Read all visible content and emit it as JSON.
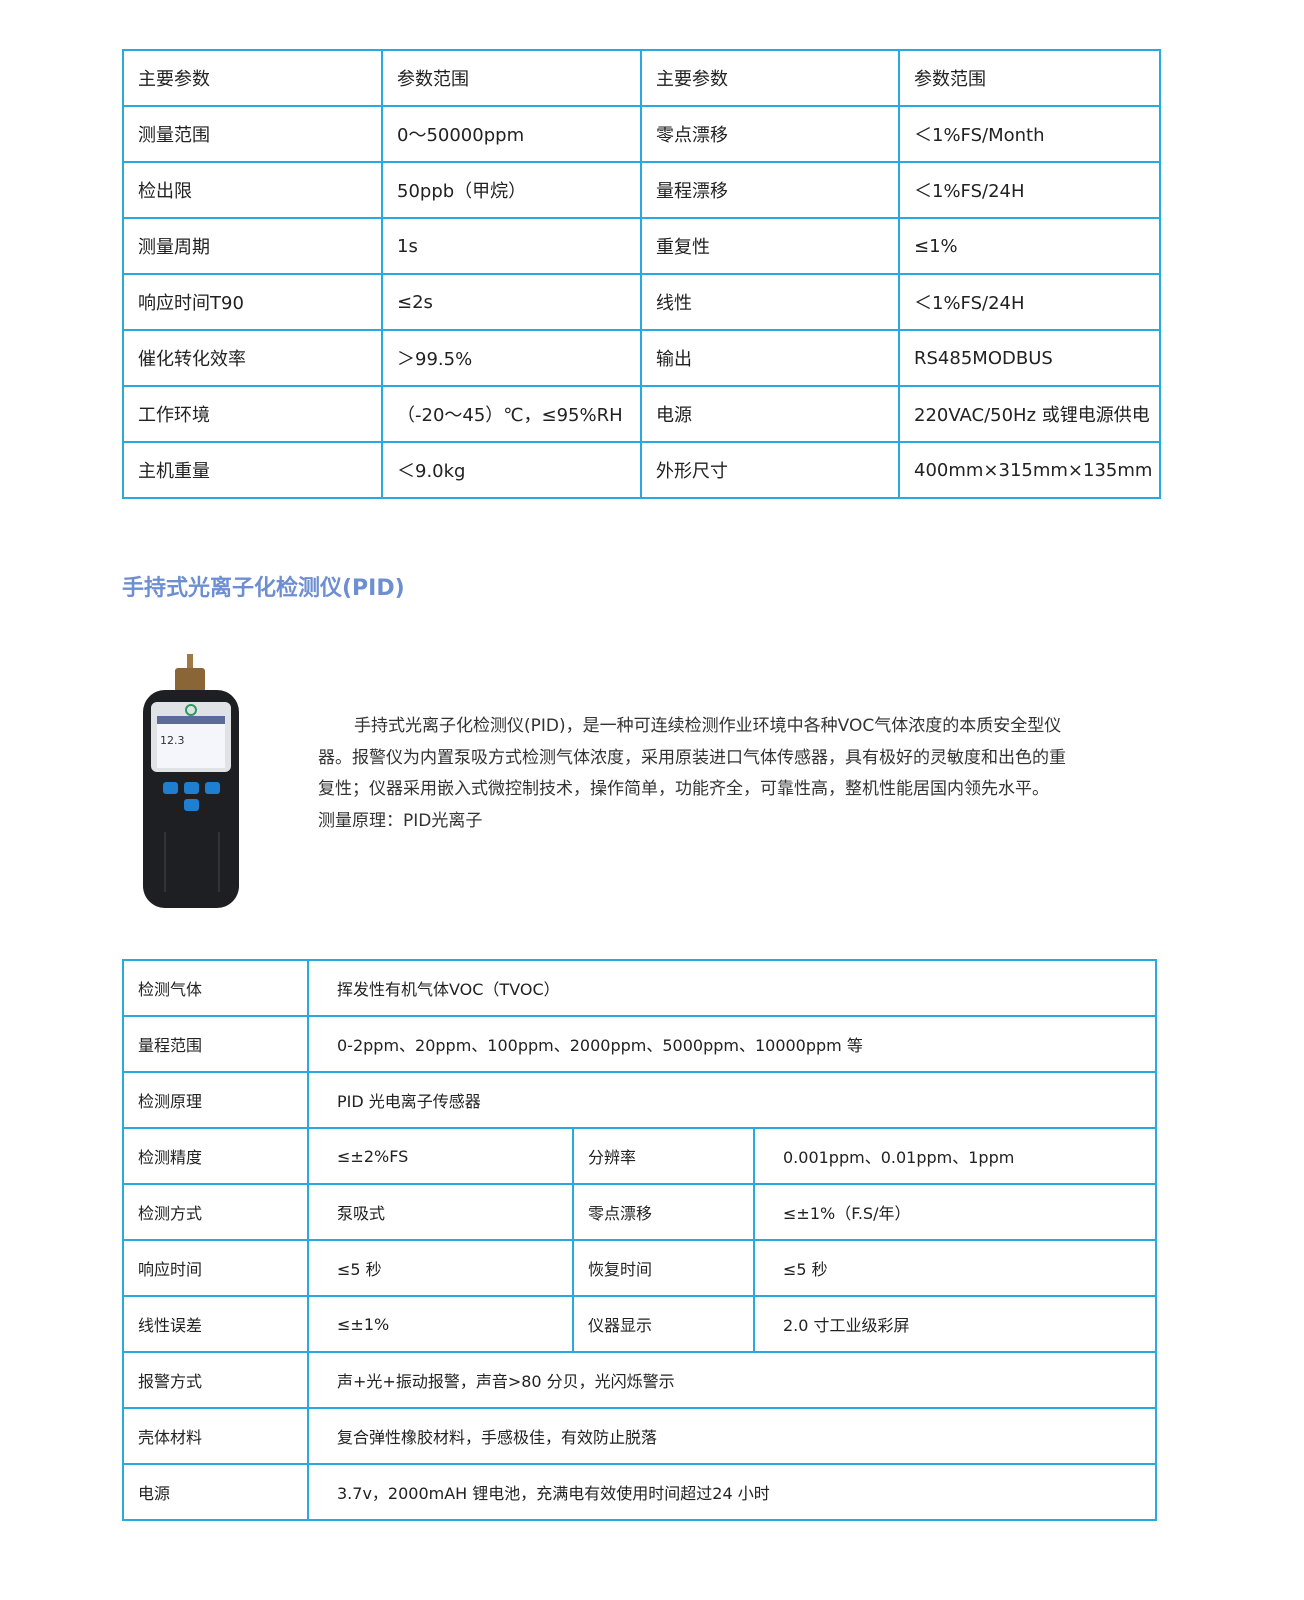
{
  "spec_table_1": {
    "rows": [
      [
        "主要参数",
        "参数范围",
        "主要参数",
        "参数范围"
      ],
      [
        "测量范围",
        "0～50000ppm",
        "零点漂移",
        "＜1%FS/Month"
      ],
      [
        "检出限",
        "50ppb（甲烷）",
        "量程漂移",
        "＜1%FS/24H"
      ],
      [
        "测量周期",
        "1s",
        "重复性",
        "≤1%"
      ],
      [
        "响应时间T90",
        "≤2s",
        "线性",
        "＜1%FS/24H"
      ],
      [
        "催化转化效率",
        "＞99.5%",
        "输出",
        "RS485MODBUS"
      ],
      [
        "工作环境",
        "（-20～45）℃，≤95%RH",
        "电源",
        "220VAC/50Hz 或锂电源供电"
      ],
      [
        "主机重量",
        "＜9.0kg",
        "外形尺寸",
        "400mm×315mm×135mm"
      ]
    ]
  },
  "section": {
    "title": "手持式光离子化检测仪(PID)",
    "description": "手持式光离子化检测仪(PID)，是一种可连续检测作业环境中各种VOC气体浓度的本质安全型仪器。报警仪为内置泵吸方式检测气体浓度，采用原装进口气体传感器，具有极好的灵敏度和出色的重复性；仪器采用嵌入式微控制技术，操作简单，功能齐全，可靠性高，整机性能居国内领先水平。",
    "principle": "测量原理：PID光离子",
    "device_screen_value": "12.3"
  },
  "spec_table_2": {
    "rows": [
      [
        "检测气体",
        "挥发性有机气体VOC（TVOC）"
      ],
      [
        "量程范围",
        "0-2ppm、20ppm、100ppm、2000ppm、5000ppm、10000ppm 等"
      ],
      [
        "检测原理",
        "PID 光电离子传感器"
      ],
      [
        "检测精度",
        "≤±2%FS",
        "分辨率",
        "0.001ppm、0.01ppm、1ppm"
      ],
      [
        "检测方式",
        "泵吸式",
        "零点漂移",
        "≤±1%（F.S/年）"
      ],
      [
        "响应时间",
        "≤5 秒",
        "恢复时间",
        "≤5 秒"
      ],
      [
        "线性误差",
        "≤±1%",
        "仪器显示",
        "2.0 寸工业级彩屏"
      ],
      [
        "报警方式",
        "声+光+振动报警，声音>80 分贝，光闪烁警示"
      ],
      [
        "壳体材料",
        "复合弹性橡胶材料，手感极佳，有效防止脱落"
      ],
      [
        "电源",
        "3.7v，2000mAH 锂电池，充满电有效使用时间超过24 小时"
      ]
    ]
  },
  "colors": {
    "border": "#2aa8e0",
    "title": "#6d8fd2",
    "device_button": "#1e7fd0"
  }
}
